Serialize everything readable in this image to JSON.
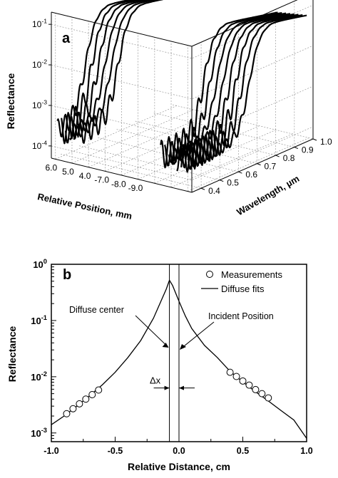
{
  "chart_data": [
    {
      "panel_label": "a",
      "type": "line",
      "projection": "3d",
      "ylabel": "Reflectance",
      "position_label": "Relative Position, mm",
      "wavelength_label": "Wavelength, µm",
      "y_scale": "log",
      "ylim": [
        5e-05,
        0.2
      ],
      "wavelength_range": [
        0.35,
        1.0
      ],
      "grid": true,
      "y_ticks": [
        {
          "value": 0.0001,
          "base": "10",
          "exp": "-4"
        },
        {
          "value": 0.001,
          "base": "10",
          "exp": "-3"
        },
        {
          "value": 0.01,
          "base": "10",
          "exp": "-2"
        },
        {
          "value": 0.1,
          "base": "10",
          "exp": "-1"
        }
      ],
      "position_ticks": [
        "6.0",
        "5.0",
        "4.0",
        "-7.0",
        "-8.0",
        "-9.0"
      ],
      "wavelength_ticks": [
        0.4,
        0.5,
        0.6,
        0.7,
        0.8,
        0.9,
        1.0
      ],
      "wavelength_tick_labels": [
        "0.4",
        "0.5",
        "0.6",
        "0.7",
        "0.8",
        "0.9",
        "1.0"
      ],
      "curve_positions": [
        6.5,
        6.0,
        5.5,
        5.0,
        4.5,
        4.0,
        -6.0,
        -6.5,
        -7.0,
        -7.5,
        -8.0,
        -8.5,
        -9.0,
        -9.5
      ],
      "curve_params": {
        "floor": 0.00025,
        "plateau": 0.09,
        "edge_wavelength_start": 0.51,
        "edge_wavelength_step": 0.013,
        "edge_width": 0.028
      }
    },
    {
      "panel_label": "b",
      "type": "scatter",
      "ylabel": "Reflectance",
      "xlabel": "Relative Distance, cm",
      "xlim": [
        -1.0,
        1.0
      ],
      "ylim": [
        0.0007,
        1.0
      ],
      "y_scale": "log",
      "grid": false,
      "legend": "top-right",
      "x_ticks": [
        -1.0,
        -0.5,
        0.0,
        0.5,
        1.0
      ],
      "x_tick_labels": [
        "-1.0",
        "-0.5",
        "0.0",
        "0.5",
        "1.0"
      ],
      "y_ticks": [
        {
          "value": 0.001,
          "base": "10",
          "exp": "-3"
        },
        {
          "value": 0.01,
          "base": "10",
          "exp": "-2"
        },
        {
          "value": 0.1,
          "base": "10",
          "exp": "-1"
        },
        {
          "value": 1.0,
          "base": "10",
          "exp": "0"
        }
      ],
      "series": [
        {
          "name": "Measurements",
          "marker": "open-circle",
          "x": [
            -0.88,
            -0.83,
            -0.78,
            -0.73,
            -0.68,
            -0.63,
            0.4,
            0.45,
            0.5,
            0.55,
            0.6,
            0.65,
            0.7
          ],
          "y": [
            0.0022,
            0.0027,
            0.0033,
            0.004,
            0.0048,
            0.0058,
            0.012,
            0.0101,
            0.0084,
            0.0071,
            0.0059,
            0.005,
            0.0042
          ]
        },
        {
          "name": "Diffuse fits",
          "marker": "line",
          "x": [
            -1.0,
            -0.9,
            -0.8,
            -0.7,
            -0.6,
            -0.5,
            -0.4,
            -0.3,
            -0.2,
            -0.15,
            -0.1,
            -0.075,
            -0.05,
            0.0,
            0.05,
            0.1,
            0.2,
            0.3,
            0.4,
            0.5,
            0.6,
            0.7,
            0.8,
            0.9,
            1.0
          ],
          "y": [
            0.0014,
            0.002,
            0.003,
            0.0046,
            0.0072,
            0.012,
            0.022,
            0.044,
            0.11,
            0.2,
            0.36,
            0.52,
            0.42,
            0.22,
            0.12,
            0.072,
            0.036,
            0.022,
            0.0125,
            0.0081,
            0.0054,
            0.0037,
            0.0025,
            0.0017,
            0.0008
          ]
        }
      ],
      "annotations": {
        "diffuse_center": {
          "text": "Diffuse center",
          "x": -0.075
        },
        "incident_position": {
          "text": "Incident Position",
          "x": 0.0
        },
        "delta_x": {
          "text": "Δx",
          "y": 0.0063
        }
      }
    }
  ]
}
